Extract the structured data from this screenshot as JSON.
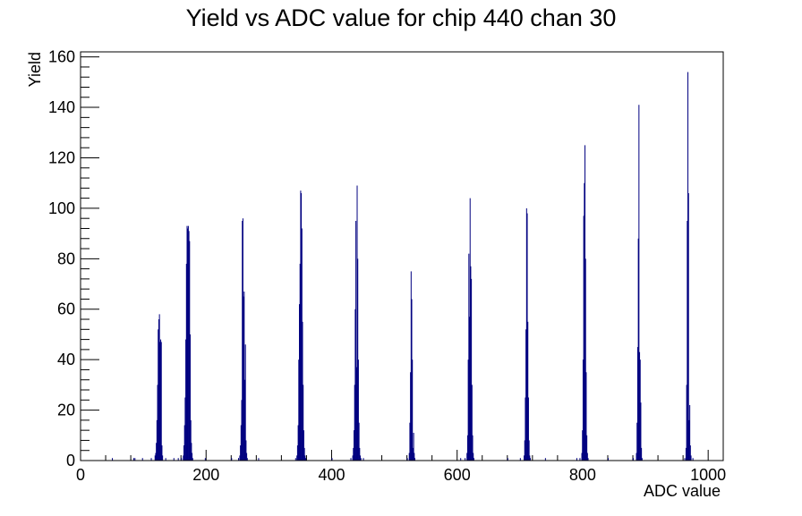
{
  "chart_data": {
    "type": "bar",
    "title": "Yield vs ADC value for chip 440 chan 30",
    "xlabel": "ADC value",
    "ylabel": "Yield",
    "xlim": [
      0,
      1024
    ],
    "ylim": [
      0,
      162
    ],
    "x_ticks": [
      0,
      200,
      400,
      600,
      800,
      1000
    ],
    "y_ticks": [
      0,
      20,
      40,
      60,
      80,
      100,
      120,
      140,
      160
    ],
    "grid": false,
    "legend": "none",
    "line_color": "#000080",
    "bin_width": 1,
    "bins": [
      {
        "x": 50,
        "y": 1
      },
      {
        "x": 84,
        "y": 1
      },
      {
        "x": 86,
        "y": 1
      },
      {
        "x": 98,
        "y": 1
      },
      {
        "x": 112,
        "y": 1
      },
      {
        "x": 118,
        "y": 2
      },
      {
        "x": 119,
        "y": 3
      },
      {
        "x": 120,
        "y": 7
      },
      {
        "x": 121,
        "y": 16
      },
      {
        "x": 122,
        "y": 30
      },
      {
        "x": 123,
        "y": 52
      },
      {
        "x": 124,
        "y": 56
      },
      {
        "x": 125,
        "y": 58
      },
      {
        "x": 126,
        "y": 47
      },
      {
        "x": 127,
        "y": 48
      },
      {
        "x": 128,
        "y": 47
      },
      {
        "x": 129,
        "y": 6
      },
      {
        "x": 130,
        "y": 2
      },
      {
        "x": 135,
        "y": 1
      },
      {
        "x": 148,
        "y": 1
      },
      {
        "x": 155,
        "y": 1
      },
      {
        "x": 160,
        "y": 1
      },
      {
        "x": 163,
        "y": 2
      },
      {
        "x": 164,
        "y": 6
      },
      {
        "x": 165,
        "y": 14
      },
      {
        "x": 166,
        "y": 25
      },
      {
        "x": 167,
        "y": 48
      },
      {
        "x": 168,
        "y": 78
      },
      {
        "x": 169,
        "y": 93
      },
      {
        "x": 170,
        "y": 92
      },
      {
        "x": 171,
        "y": 93
      },
      {
        "x": 172,
        "y": 91
      },
      {
        "x": 173,
        "y": 87
      },
      {
        "x": 174,
        "y": 50
      },
      {
        "x": 175,
        "y": 16
      },
      {
        "x": 176,
        "y": 7
      },
      {
        "x": 177,
        "y": 3
      },
      {
        "x": 178,
        "y": 1
      },
      {
        "x": 198,
        "y": 1
      },
      {
        "x": 240,
        "y": 1
      },
      {
        "x": 251,
        "y": 1
      },
      {
        "x": 253,
        "y": 2
      },
      {
        "x": 254,
        "y": 6
      },
      {
        "x": 255,
        "y": 14
      },
      {
        "x": 256,
        "y": 24
      },
      {
        "x": 257,
        "y": 95
      },
      {
        "x": 258,
        "y": 96
      },
      {
        "x": 259,
        "y": 65
      },
      {
        "x": 260,
        "y": 67
      },
      {
        "x": 261,
        "y": 32
      },
      {
        "x": 262,
        "y": 46
      },
      {
        "x": 263,
        "y": 8
      },
      {
        "x": 264,
        "y": 3
      },
      {
        "x": 265,
        "y": 1
      },
      {
        "x": 283,
        "y": 1
      },
      {
        "x": 342,
        "y": 1
      },
      {
        "x": 344,
        "y": 2
      },
      {
        "x": 345,
        "y": 6
      },
      {
        "x": 346,
        "y": 14
      },
      {
        "x": 347,
        "y": 40
      },
      {
        "x": 348,
        "y": 62
      },
      {
        "x": 349,
        "y": 78
      },
      {
        "x": 350,
        "y": 107
      },
      {
        "x": 351,
        "y": 106
      },
      {
        "x": 352,
        "y": 92
      },
      {
        "x": 353,
        "y": 55
      },
      {
        "x": 354,
        "y": 30
      },
      {
        "x": 355,
        "y": 12
      },
      {
        "x": 356,
        "y": 5
      },
      {
        "x": 357,
        "y": 2
      },
      {
        "x": 358,
        "y": 1
      },
      {
        "x": 400,
        "y": 1
      },
      {
        "x": 430,
        "y": 1
      },
      {
        "x": 433,
        "y": 2
      },
      {
        "x": 434,
        "y": 5
      },
      {
        "x": 435,
        "y": 12
      },
      {
        "x": 436,
        "y": 30
      },
      {
        "x": 437,
        "y": 60
      },
      {
        "x": 438,
        "y": 95
      },
      {
        "x": 439,
        "y": 37
      },
      {
        "x": 440,
        "y": 109
      },
      {
        "x": 441,
        "y": 80
      },
      {
        "x": 442,
        "y": 40
      },
      {
        "x": 443,
        "y": 15
      },
      {
        "x": 444,
        "y": 5
      },
      {
        "x": 445,
        "y": 2
      },
      {
        "x": 446,
        "y": 1
      },
      {
        "x": 450,
        "y": 1
      },
      {
        "x": 520,
        "y": 1
      },
      {
        "x": 523,
        "y": 3
      },
      {
        "x": 524,
        "y": 15
      },
      {
        "x": 525,
        "y": 35
      },
      {
        "x": 526,
        "y": 75
      },
      {
        "x": 527,
        "y": 64
      },
      {
        "x": 528,
        "y": 40
      },
      {
        "x": 529,
        "y": 5
      },
      {
        "x": 530,
        "y": 11
      },
      {
        "x": 531,
        "y": 3
      },
      {
        "x": 532,
        "y": 1
      },
      {
        "x": 605,
        "y": 1
      },
      {
        "x": 612,
        "y": 1
      },
      {
        "x": 615,
        "y": 3
      },
      {
        "x": 616,
        "y": 10
      },
      {
        "x": 617,
        "y": 40
      },
      {
        "x": 618,
        "y": 82
      },
      {
        "x": 619,
        "y": 57
      },
      {
        "x": 620,
        "y": 104
      },
      {
        "x": 621,
        "y": 77
      },
      {
        "x": 622,
        "y": 72
      },
      {
        "x": 623,
        "y": 30
      },
      {
        "x": 624,
        "y": 10
      },
      {
        "x": 625,
        "y": 3
      },
      {
        "x": 626,
        "y": 1
      },
      {
        "x": 680,
        "y": 1
      },
      {
        "x": 700,
        "y": 1
      },
      {
        "x": 706,
        "y": 2
      },
      {
        "x": 707,
        "y": 8
      },
      {
        "x": 708,
        "y": 25
      },
      {
        "x": 709,
        "y": 52
      },
      {
        "x": 710,
        "y": 100
      },
      {
        "x": 711,
        "y": 98
      },
      {
        "x": 712,
        "y": 55
      },
      {
        "x": 713,
        "y": 25
      },
      {
        "x": 714,
        "y": 8
      },
      {
        "x": 715,
        "y": 2
      },
      {
        "x": 716,
        "y": 1
      },
      {
        "x": 740,
        "y": 1
      },
      {
        "x": 790,
        "y": 1
      },
      {
        "x": 795,
        "y": 1
      },
      {
        "x": 798,
        "y": 3
      },
      {
        "x": 799,
        "y": 12
      },
      {
        "x": 800,
        "y": 40
      },
      {
        "x": 801,
        "y": 97
      },
      {
        "x": 802,
        "y": 110
      },
      {
        "x": 803,
        "y": 125
      },
      {
        "x": 804,
        "y": 80
      },
      {
        "x": 805,
        "y": 35
      },
      {
        "x": 806,
        "y": 10
      },
      {
        "x": 807,
        "y": 3
      },
      {
        "x": 808,
        "y": 1
      },
      {
        "x": 840,
        "y": 1
      },
      {
        "x": 880,
        "y": 1
      },
      {
        "x": 885,
        "y": 3
      },
      {
        "x": 886,
        "y": 15
      },
      {
        "x": 887,
        "y": 45
      },
      {
        "x": 888,
        "y": 88
      },
      {
        "x": 889,
        "y": 141
      },
      {
        "x": 890,
        "y": 43
      },
      {
        "x": 891,
        "y": 40
      },
      {
        "x": 892,
        "y": 23
      },
      {
        "x": 893,
        "y": 5
      },
      {
        "x": 894,
        "y": 1
      },
      {
        "x": 962,
        "y": 1
      },
      {
        "x": 964,
        "y": 5
      },
      {
        "x": 965,
        "y": 30
      },
      {
        "x": 966,
        "y": 95
      },
      {
        "x": 967,
        "y": 154
      },
      {
        "x": 968,
        "y": 106
      },
      {
        "x": 969,
        "y": 16
      },
      {
        "x": 970,
        "y": 22
      },
      {
        "x": 971,
        "y": 6
      },
      {
        "x": 972,
        "y": 2
      },
      {
        "x": 975,
        "y": 1
      }
    ]
  }
}
